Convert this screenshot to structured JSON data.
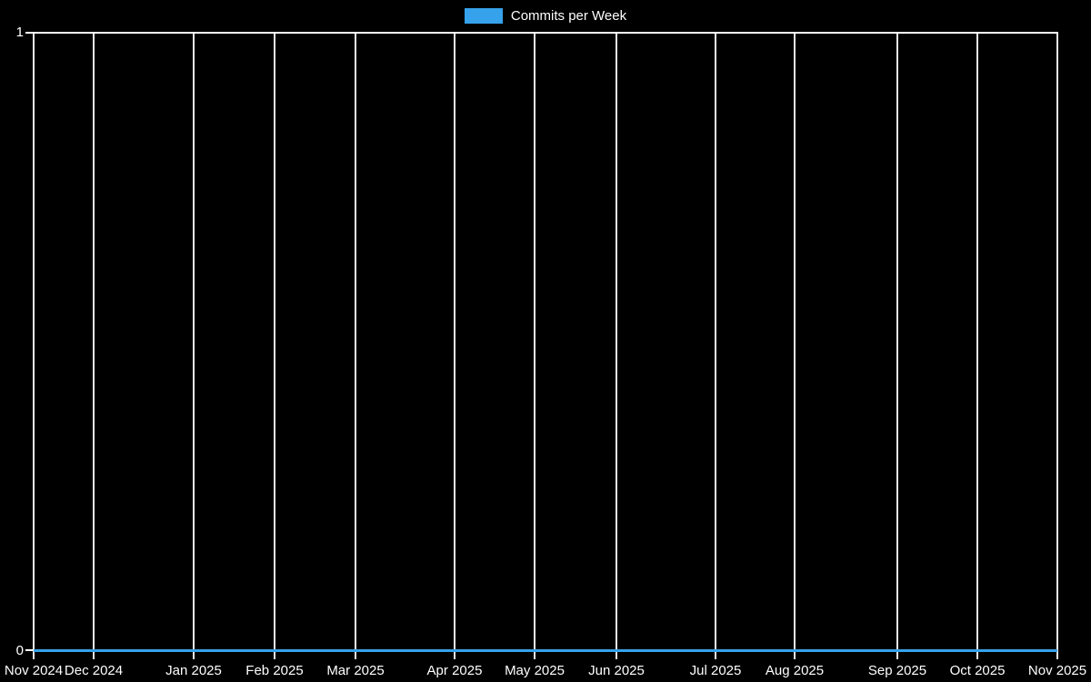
{
  "legend": {
    "label": "Commits per Week",
    "swatch_color": "#36a2eb"
  },
  "colors": {
    "background": "#000000",
    "gridline": "#ffffff",
    "text": "#ffffff",
    "series": "#36a2eb"
  },
  "y_axis": {
    "ticks": [
      "1",
      "0"
    ],
    "min": 0,
    "max": 1
  },
  "x_axis": {
    "ticks": [
      "Nov 2024",
      "Dec 2024",
      "Jan 2025",
      "Feb 2025",
      "Mar 2025",
      "Apr 2025",
      "May 2025",
      "Jun 2025",
      "Jul 2025",
      "Aug 2025",
      "Sep 2025",
      "Oct 2025",
      "Nov 2025"
    ]
  },
  "chart_data": {
    "type": "line",
    "title": "",
    "xlabel": "",
    "ylabel": "",
    "x": [
      "Nov 2024",
      "Dec 2024",
      "Jan 2025",
      "Feb 2025",
      "Mar 2025",
      "Apr 2025",
      "May 2025",
      "Jun 2025",
      "Jul 2025",
      "Aug 2025",
      "Sep 2025",
      "Oct 2025",
      "Nov 2025"
    ],
    "series": [
      {
        "name": "Commits per Week",
        "color": "#36a2eb",
        "values": [
          0,
          0,
          0,
          0,
          0,
          0,
          0,
          0,
          0,
          0,
          0,
          0,
          0
        ]
      }
    ],
    "ylim": [
      0,
      1
    ],
    "grid": "vertical-only",
    "legend_position": "top",
    "background": "#000000"
  }
}
